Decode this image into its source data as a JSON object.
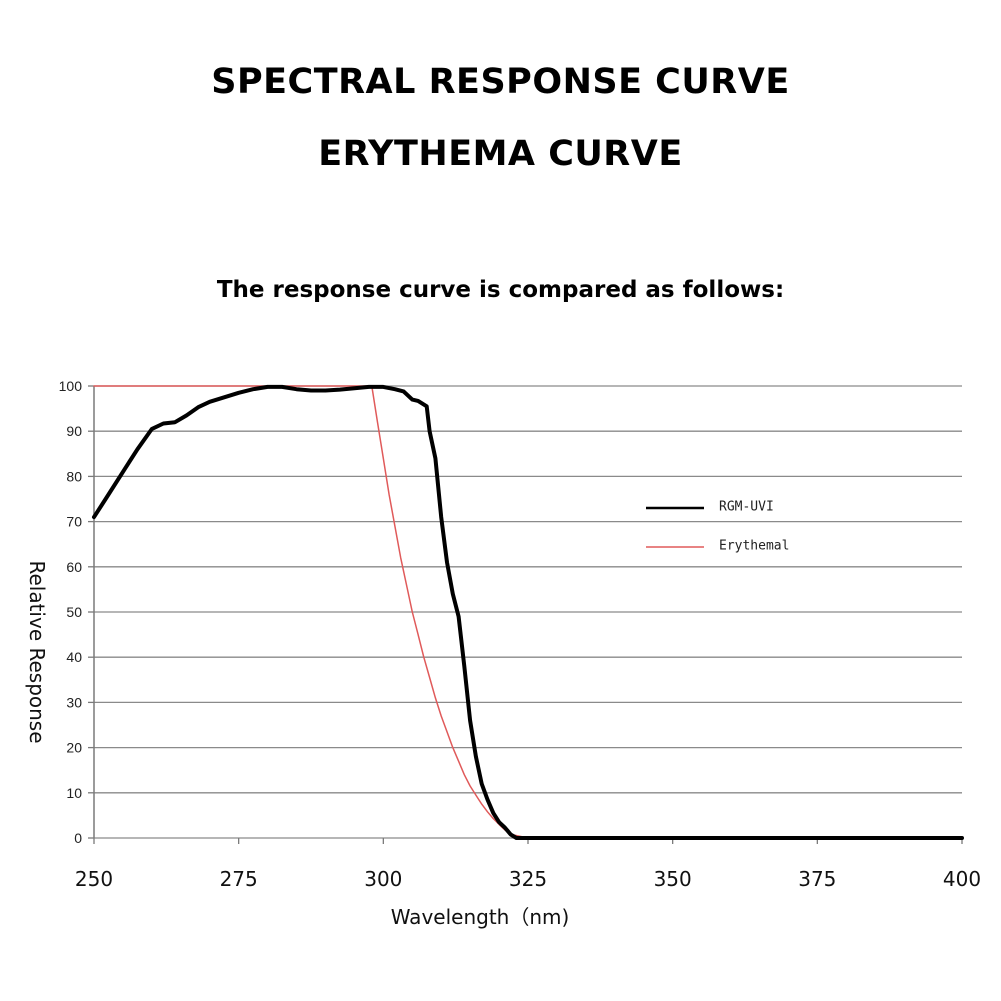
{
  "header": {
    "title_line1": "SPECTRAL RESPONSE CURVE",
    "title_line2": "ERYTHEMA CURVE",
    "subtitle": "The response curve is compared as follows:"
  },
  "chart_data": {
    "type": "line",
    "xlabel": "Wavelength（nm)",
    "ylabel": "Relative Response",
    "xlim": [
      250,
      400
    ],
    "ylim": [
      0,
      100
    ],
    "x_ticks": [
      250,
      275,
      300,
      325,
      350,
      375,
      400
    ],
    "y_ticks": [
      0,
      10,
      20,
      30,
      40,
      50,
      60,
      70,
      80,
      90,
      100
    ],
    "grid": "horizontal",
    "legend_position": "right",
    "series": [
      {
        "name": "RGM-UVI",
        "color": "#000000",
        "x": [
          250,
          252.5,
          255,
          257.5,
          260,
          262,
          264,
          266,
          268,
          270,
          272.5,
          275,
          277.5,
          280,
          282.5,
          285,
          287.5,
          290,
          292.5,
          295,
          297.5,
          300,
          302,
          303.5,
          305,
          306,
          307.5,
          308,
          309,
          310,
          311,
          312,
          313,
          314,
          315,
          316,
          317,
          318,
          319,
          320,
          321,
          322,
          323,
          325,
          350,
          375,
          400
        ],
        "y": [
          71,
          76,
          81,
          86,
          90.5,
          91.7,
          92,
          93.5,
          95.3,
          96.5,
          97.5,
          98.5,
          99.3,
          99.8,
          99.8,
          99.3,
          99,
          99,
          99.2,
          99.5,
          99.8,
          99.8,
          99.3,
          98.8,
          97,
          96.7,
          95.5,
          90,
          84,
          71,
          61,
          54,
          49,
          38,
          26,
          18,
          12,
          8.5,
          5.5,
          3.5,
          2.3,
          0.8,
          0,
          0,
          0,
          0,
          0
        ]
      },
      {
        "name": "Erythemal",
        "color": "#e05a5a",
        "x": [
          250,
          260,
          270,
          280,
          290,
          298,
          299,
          300,
          301,
          302,
          303,
          304,
          305,
          306,
          307,
          308,
          309,
          310,
          311,
          312,
          313,
          314,
          315,
          316,
          317,
          318,
          319,
          320,
          321,
          322,
          325,
          350,
          375,
          400
        ],
        "y": [
          100,
          100,
          100,
          100,
          100,
          100,
          92,
          84,
          76,
          69,
          62,
          56,
          50,
          45,
          40,
          35.5,
          31,
          27,
          23.5,
          20,
          17,
          14,
          11.5,
          9.5,
          7.5,
          5.8,
          4.3,
          3,
          1.8,
          0.8,
          0,
          0,
          0,
          0
        ]
      }
    ]
  }
}
